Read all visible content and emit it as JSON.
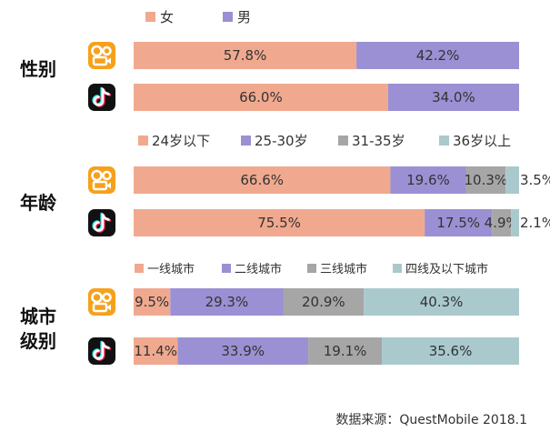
{
  "colors": {
    "female": "#f0a98f",
    "male": "#9b90d3",
    "teal": "#a9c9cd",
    "gray": "#a6a6a6",
    "kuaishou": "#f5a11c",
    "douyin": "#111111"
  },
  "icons": {
    "kuaishou": "kuaishou-logo-icon",
    "douyin": "douyin-logo-icon"
  },
  "chart_data": [
    {
      "type": "bar",
      "stacked": true,
      "orientation": "horizontal",
      "group_label": "性别",
      "categories": [
        "快手",
        "抖音"
      ],
      "legend": [
        "女",
        "男"
      ],
      "series": [
        {
          "name": "女",
          "values": [
            57.8,
            66.0
          ]
        },
        {
          "name": "男",
          "values": [
            42.2,
            34.0
          ]
        }
      ],
      "labels": [
        [
          "57.8%",
          "42.2%"
        ],
        [
          "66.0%",
          "34.0%"
        ]
      ]
    },
    {
      "type": "bar",
      "stacked": true,
      "orientation": "horizontal",
      "group_label": "年龄",
      "categories": [
        "快手",
        "抖音"
      ],
      "legend": [
        "24岁以下",
        "25-30岁",
        "31-35岁",
        "36岁以上"
      ],
      "series": [
        {
          "name": "24岁以下",
          "values": [
            66.6,
            75.5
          ]
        },
        {
          "name": "25-30岁",
          "values": [
            19.6,
            17.5
          ]
        },
        {
          "name": "31-35岁",
          "values": [
            10.3,
            4.9
          ]
        },
        {
          "name": "36岁以上",
          "values": [
            3.5,
            2.1
          ]
        }
      ],
      "labels": [
        [
          "66.6%",
          "19.6%",
          "10.3%",
          "3.5%"
        ],
        [
          "75.5%",
          "17.5%",
          "4.9%",
          "2.1%"
        ]
      ]
    },
    {
      "type": "bar",
      "stacked": true,
      "orientation": "horizontal",
      "group_label": "城市级别",
      "categories": [
        "快手",
        "抖音"
      ],
      "legend": [
        "一线城市",
        "二线城市",
        "三线城市",
        "四线及以下城市"
      ],
      "series": [
        {
          "name": "一线城市",
          "values": [
            9.5,
            11.4
          ]
        },
        {
          "name": "二线城市",
          "values": [
            29.3,
            33.9
          ]
        },
        {
          "name": "三线城市",
          "values": [
            20.9,
            19.1
          ]
        },
        {
          "name": "四线及以下城市",
          "values": [
            40.3,
            35.6
          ]
        }
      ],
      "labels": [
        [
          "9.5%",
          "29.3%",
          "20.9%",
          "40.3%"
        ],
        [
          "11.4%",
          "33.9%",
          "19.1%",
          "35.6%"
        ]
      ]
    }
  ],
  "source_text": "数据来源：QuestMobile 2018.1"
}
